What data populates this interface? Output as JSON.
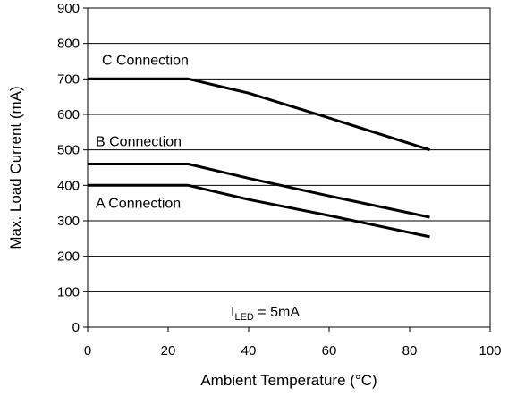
{
  "chart_data": {
    "type": "line",
    "xlabel": "Ambient Temperature (°C)",
    "ylabel": "Max. Load Current (mA)",
    "xlim": [
      0,
      100
    ],
    "ylim": [
      0,
      900
    ],
    "x_ticks": [
      "0",
      "20",
      "40",
      "60",
      "80",
      "100"
    ],
    "y_ticks": [
      "0",
      "100",
      "200",
      "300",
      "400",
      "500",
      "600",
      "700",
      "800",
      "900"
    ],
    "grid": "horizontal",
    "legend": "none",
    "series": [
      {
        "name": "C Connection",
        "x": [
          0,
          25,
          40,
          60,
          85
        ],
        "y": [
          700,
          700,
          660,
          590,
          500
        ]
      },
      {
        "name": "B Connection",
        "x": [
          0,
          25,
          40,
          60,
          85
        ],
        "y": [
          460,
          460,
          420,
          370,
          310
        ]
      },
      {
        "name": "A Connection",
        "x": [
          0,
          25,
          40,
          60,
          85
        ],
        "y": [
          400,
          400,
          360,
          315,
          255
        ]
      }
    ],
    "annotation": {
      "base": "I",
      "subscript": "LED",
      "rest": " = 5mA"
    },
    "line_color": "#000000",
    "grid_color": "#000000"
  }
}
